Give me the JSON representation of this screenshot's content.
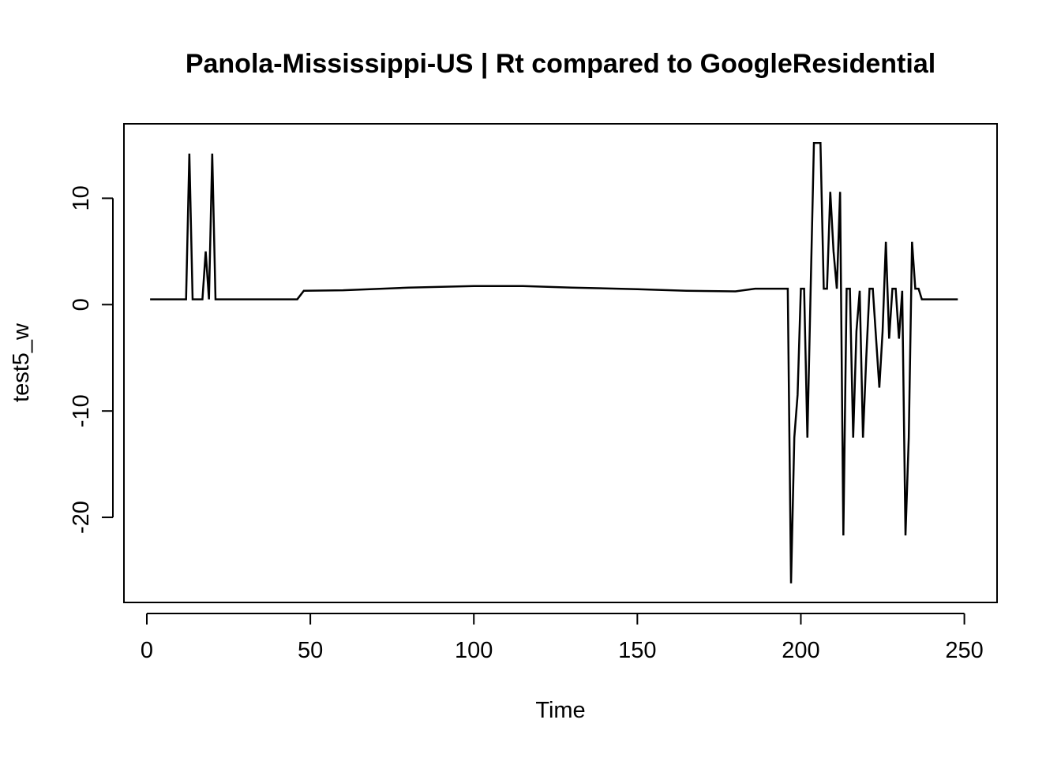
{
  "chart_data": {
    "type": "line",
    "title": "Panola-Mississippi-US | Rt compared to GoogleResidential",
    "xlabel": "Time",
    "ylabel": "test5_w",
    "xlim": [
      -7,
      260
    ],
    "ylim": [
      -28,
      17
    ],
    "x_ticks": [
      0,
      50,
      100,
      150,
      200,
      250
    ],
    "y_ticks": [
      -20,
      -10,
      0,
      10
    ],
    "grid": false,
    "legend": "none",
    "color": "#000000",
    "series": [
      {
        "points": [
          [
            1,
            0.5
          ],
          [
            12,
            0.5
          ],
          [
            13,
            14.2
          ],
          [
            14,
            0.5
          ],
          [
            17,
            0.5
          ],
          [
            18,
            5.0
          ],
          [
            19,
            0.5
          ],
          [
            20,
            14.2
          ],
          [
            21,
            0.5
          ],
          [
            46,
            0.5
          ],
          [
            48,
            1.3
          ],
          [
            60,
            1.35
          ],
          [
            80,
            1.6
          ],
          [
            100,
            1.75
          ],
          [
            115,
            1.75
          ],
          [
            130,
            1.6
          ],
          [
            150,
            1.45
          ],
          [
            165,
            1.3
          ],
          [
            180,
            1.25
          ],
          [
            186,
            1.5
          ],
          [
            196,
            1.5
          ],
          [
            197,
            -26.2
          ],
          [
            198,
            -12.5
          ],
          [
            199,
            -8.5
          ],
          [
            200,
            1.5
          ],
          [
            201,
            1.5
          ],
          [
            202,
            -12.5
          ],
          [
            203,
            1.5
          ],
          [
            204,
            15.2
          ],
          [
            206,
            15.2
          ],
          [
            207,
            1.5
          ],
          [
            208,
            1.5
          ],
          [
            209,
            10.6
          ],
          [
            210,
            5.0
          ],
          [
            211,
            1.5
          ],
          [
            212,
            10.6
          ],
          [
            213,
            -21.7
          ],
          [
            214,
            1.5
          ],
          [
            215,
            1.5
          ],
          [
            216,
            -12.5
          ],
          [
            217,
            -2.5
          ],
          [
            218,
            1.3
          ],
          [
            219,
            -12.5
          ],
          [
            220,
            -5.0
          ],
          [
            221,
            1.5
          ],
          [
            222,
            1.5
          ],
          [
            224,
            -7.8
          ],
          [
            225,
            -2.5
          ],
          [
            226,
            5.9
          ],
          [
            227,
            -3.2
          ],
          [
            228,
            1.5
          ],
          [
            229,
            1.5
          ],
          [
            230,
            -3.2
          ],
          [
            231,
            1.3
          ],
          [
            232,
            -21.7
          ],
          [
            233,
            -12.5
          ],
          [
            234,
            5.9
          ],
          [
            235,
            1.5
          ],
          [
            236,
            1.5
          ],
          [
            237,
            0.5
          ],
          [
            248,
            0.5
          ]
        ]
      }
    ]
  }
}
